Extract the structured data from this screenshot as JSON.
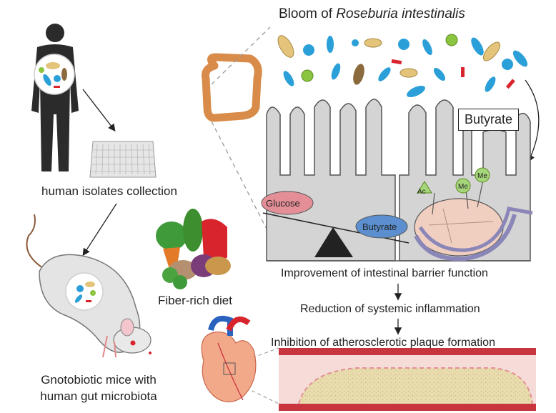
{
  "title": {
    "prefix": "Bloom of ",
    "species": "Roseburia intestinalis"
  },
  "labels": {
    "isolates": "human isolates collection",
    "fiber_diet": "Fiber-rich diet",
    "mice_line1": "Gnotobiotic mice with",
    "mice_line2": "human gut microbiota",
    "butyrate_box": "Butyrate",
    "glucose": "Glucose",
    "butyrate_small": "Butyrate",
    "ac": "Ac",
    "me1": "Me",
    "me2": "Me",
    "step1": "Improvement of intestinal barrier function",
    "step2": "Reduction of systemic inflammation",
    "step3": "Inhibition of atherosclerotic plaque formation"
  },
  "colors": {
    "silhouette": "#2b2b2b",
    "villi": "#d4d4d4",
    "villi_stroke": "#555555",
    "bacteria_blue": "#2a9fd8",
    "bacteria_tan": "#e3c47a",
    "bacteria_red": "#d8242c",
    "bacteria_green": "#8bc53f",
    "glucose_fill": "#e48f97",
    "butyrate_fill": "#5b8fd0",
    "nucleus": "#f0cfc0",
    "vessel_red": "#c9353f",
    "plaque": "#e8d8a8",
    "colon": "#d98c4a"
  },
  "icons": [
    "person-silhouette-icon",
    "well-plate-icon",
    "mouse-icon",
    "colon-icon",
    "vegetables-icon",
    "heart-icon",
    "seesaw-icon",
    "histone-icon",
    "artery-icon"
  ]
}
